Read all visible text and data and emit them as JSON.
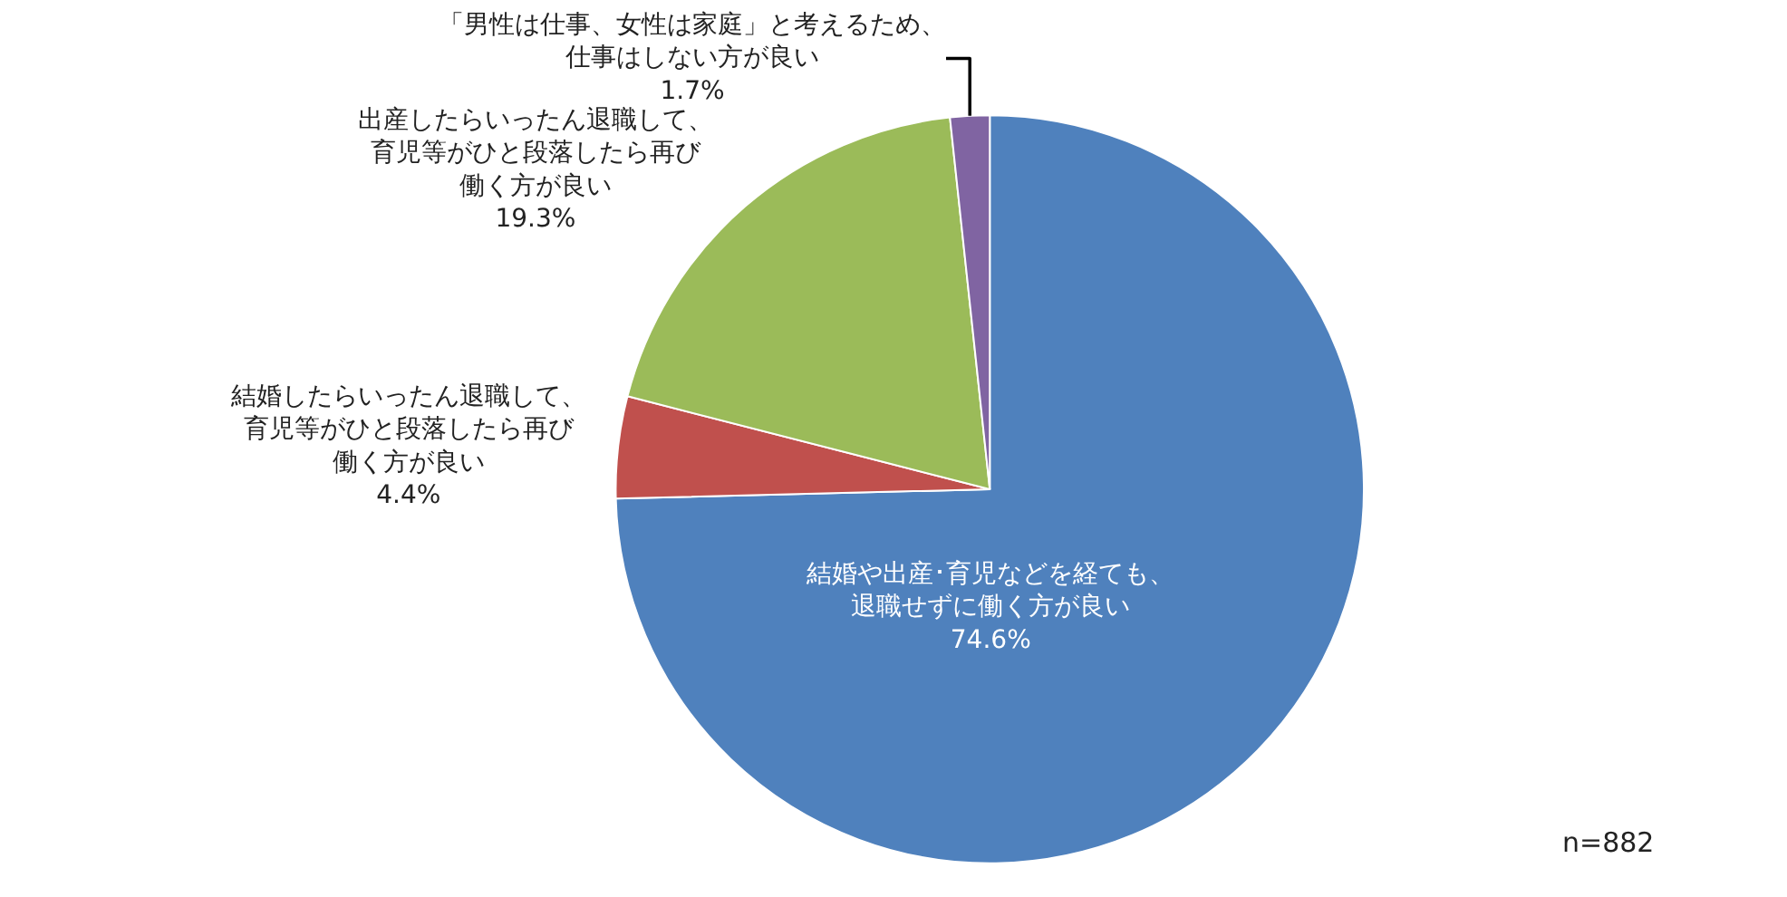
{
  "chart_data": {
    "type": "pie",
    "categories": [
      "結婚や出産･育児などを経ても、退職せずに働く方が良い",
      "結婚したらいったん退職して、育児等がひと段落したら再び働く方が良い",
      "出産したらいったん退職して、育児等がひと段落したら再び働く方が良い",
      "「男性は仕事、女性は家庭」と考えるため、仕事はしない方が良い"
    ],
    "values": [
      74.6,
      4.4,
      19.3,
      1.7
    ],
    "value_labels": [
      "74.6%",
      "4.4%",
      "19.3%",
      "1.7%"
    ],
    "colors": [
      "#4f81bd",
      "#c0504d",
      "#9bbb59",
      "#8064a2"
    ],
    "annotations": [
      "n=882"
    ],
    "legend": false
  }
}
